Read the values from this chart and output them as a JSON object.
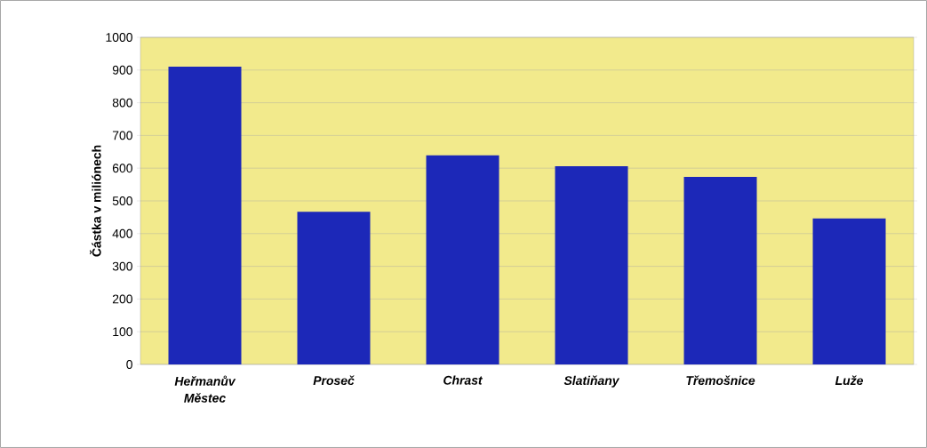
{
  "chart_data": {
    "type": "bar",
    "ylabel": "Částka v miliónech",
    "categories": [
      "Heřmanův Městec",
      "Proseč",
      "Chrast",
      "Slatiňany",
      "Třemošnice",
      "Luže"
    ],
    "values": [
      910,
      467,
      639,
      606,
      573,
      446
    ],
    "color": "#1c28b8",
    "ylim": [
      0,
      1000
    ],
    "yticks": [
      0,
      100,
      200,
      300,
      400,
      500,
      600,
      700,
      800,
      900,
      1000
    ],
    "grid": "y"
  }
}
